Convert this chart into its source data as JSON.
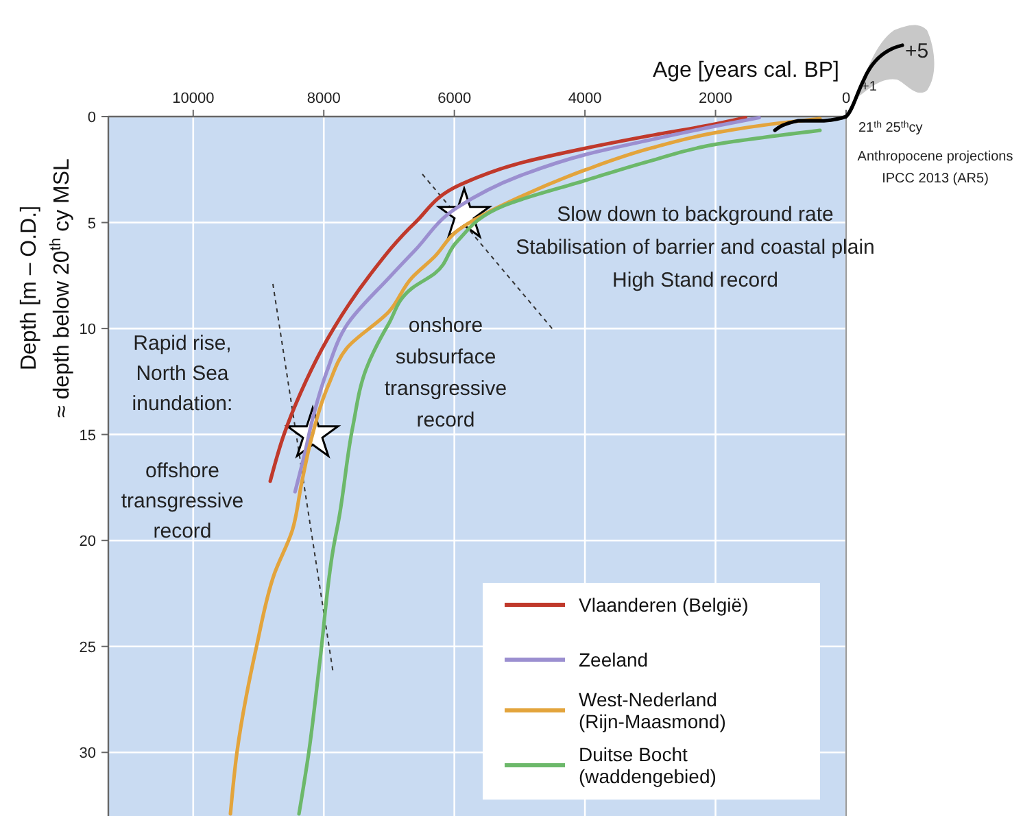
{
  "chart_data": {
    "type": "line",
    "xlabel": "Age [years cal. BP]",
    "ylabel": "Depth  [m – O.D.]\n≈ depth below 20$^{th}$ cy MSL",
    "xlim": [
      11300,
      0
    ],
    "xticks": [
      10000,
      8000,
      6000,
      4000,
      2000,
      0
    ],
    "ylim": [
      33,
      0
    ],
    "yticks": [
      0,
      5,
      10,
      15,
      20,
      25,
      30
    ],
    "grid": true,
    "legend": "bottom right",
    "line_style": "solid",
    "marker": "none",
    "series": [
      {
        "type": "scatter",
        "marker": "star",
        "color": "#ffffff",
        "x": [
          5850,
          8170
        ],
        "values": [
          4.65,
          15.0
        ]
      },
      {
        "name": "Vlaanderen (België)",
        "color": "#c0392b",
        "x": [
          8820,
          8610,
          8350,
          7850,
          7300,
          6600,
          5900,
          5000,
          4000,
          3000,
          2000,
          1540
        ],
        "values": [
          17.2,
          15,
          13,
          10,
          7.5,
          5,
          3.2,
          2.2,
          1.5,
          0.9,
          0.35,
          0.05
        ]
      },
      {
        "name": "Zeeland",
        "color": "#9b8fd0",
        "x": [
          8440,
          8300,
          8150,
          7950,
          7640,
          7000,
          6600,
          5960,
          5000,
          4000,
          3000,
          2000,
          1330
        ],
        "values": [
          17.7,
          16,
          14,
          12,
          9.8,
          7.6,
          6.3,
          4.3,
          2.8,
          1.8,
          1.1,
          0.45,
          0.05
        ]
      },
      {
        "name": "West-Nederland (Rijn-Maasmond)",
        "color": "#e3a43c",
        "x": [
          9430,
          9330,
          9030,
          8760,
          8480,
          8340,
          8190,
          7920,
          7640,
          7000,
          6650,
          6300,
          5960,
          5000,
          3980,
          3000,
          1980,
          1000,
          400
        ],
        "values": [
          32.9,
          30,
          25,
          21.6,
          19.5,
          17.3,
          15.2,
          12.6,
          10.9,
          9.2,
          7.6,
          6.6,
          5.4,
          3.8,
          2.5,
          1.5,
          0.75,
          0.3,
          0.1
        ]
      },
      {
        "name": "Duitse Bocht (waddengebied)",
        "color": "#6cb86a",
        "x": [
          8380,
          8230,
          8060,
          7850,
          7770,
          7560,
          7350,
          7010,
          6650,
          6300,
          5960,
          5240,
          3980,
          3010,
          1980,
          400
        ],
        "values": [
          32.9,
          30,
          25.7,
          20.3,
          19,
          14.7,
          11.9,
          9.8,
          8.1,
          7.4,
          5.9,
          4.2,
          3.0,
          2.1,
          1.3,
          0.65
        ]
      },
      {
        "color": "#000000",
        "x": [
          1090,
          740,
          340,
          0
        ],
        "values": [
          0.65,
          0.2,
          0.2,
          0
        ]
      }
    ],
    "annotations": [
      "Rapid rise,\nNorth Sea\ninundation:",
      "offshore\ntransgressive\nrecord",
      "onshore\nsubsurface\ntransgressive\nrecord",
      "Slow down to background rate\nStabilisation of barrier and coastal plain\nHigh Stand record",
      "+5",
      "+1",
      "21$^{th}$  25$^{th}$cy",
      "Anthropocene projections\nIPCC 2013 (AR5)"
    ]
  }
}
